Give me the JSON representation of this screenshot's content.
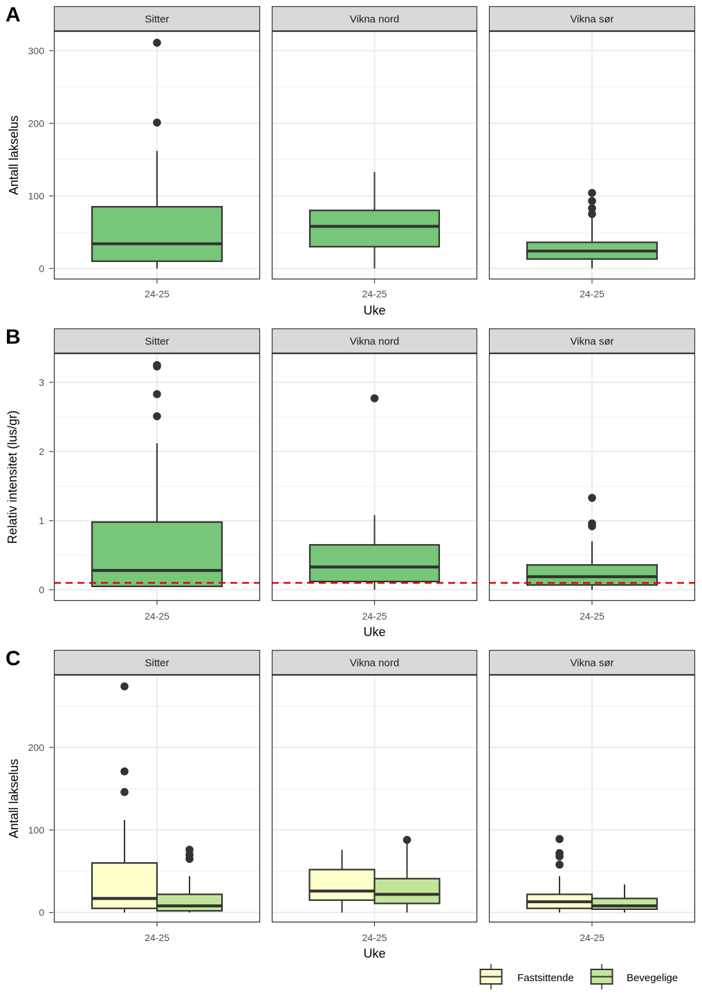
{
  "colors": {
    "single_fill": "#78c679",
    "fastsittende_fill": "#ffffcc",
    "bevegelige_fill": "#c2e699",
    "outline": "#333333",
    "strip_bg": "#d9d9d9",
    "threshold": "#e60000"
  },
  "legend": {
    "items": [
      {
        "label": "Fastsittende",
        "color": "#ffffcc"
      },
      {
        "label": "Bevegelige",
        "color": "#c2e699"
      }
    ]
  },
  "chart_data": [
    {
      "type": "boxplot",
      "panel_label": "A",
      "ylabel": "Antall lakselus",
      "xlabel": "Uke",
      "ylim": [
        -15,
        327
      ],
      "yticks": [
        0,
        100,
        200,
        300
      ],
      "facets": [
        {
          "title": "Sitter",
          "category": "24-25",
          "boxes": [
            {
              "series": "all",
              "whisker_low": 0,
              "q1": 10,
              "median": 34,
              "q3": 85,
              "whisker_high": 162,
              "outliers": [
                201,
                311
              ]
            }
          ]
        },
        {
          "title": "Vikna nord",
          "category": "24-25",
          "boxes": [
            {
              "series": "all",
              "whisker_low": 0,
              "q1": 30,
              "median": 58,
              "q3": 80,
              "whisker_high": 133,
              "outliers": []
            }
          ]
        },
        {
          "title": "Vikna sør",
          "category": "24-25",
          "boxes": [
            {
              "series": "all",
              "whisker_low": 0,
              "q1": 13,
              "median": 24,
              "q3": 36,
              "whisker_high": 70,
              "outliers": [
                75,
                83,
                93,
                104
              ]
            }
          ]
        }
      ]
    },
    {
      "type": "boxplot",
      "panel_label": "B",
      "ylabel": "Relativ intensitet (lus/gr)",
      "xlabel": "Uke",
      "ylim": [
        -0.16,
        3.42
      ],
      "yticks": [
        0,
        1,
        2,
        3
      ],
      "threshold": 0.1,
      "facets": [
        {
          "title": "Sitter",
          "category": "24-25",
          "boxes": [
            {
              "series": "all",
              "whisker_low": 0.04,
              "q1": 0.05,
              "median": 0.28,
              "q3": 0.98,
              "whisker_high": 2.12,
              "outliers": [
                2.51,
                2.83,
                3.23,
                3.25
              ]
            }
          ]
        },
        {
          "title": "Vikna nord",
          "category": "24-25",
          "boxes": [
            {
              "series": "all",
              "whisker_low": 0,
              "q1": 0.12,
              "median": 0.33,
              "q3": 0.65,
              "whisker_high": 1.08,
              "outliers": [
                2.77
              ]
            }
          ]
        },
        {
          "title": "Vikna sør",
          "category": "24-25",
          "boxes": [
            {
              "series": "all",
              "whisker_low": 0,
              "q1": 0.07,
              "median": 0.19,
              "q3": 0.36,
              "whisker_high": 0.7,
              "outliers": [
                0.92,
                0.96,
                1.33
              ]
            }
          ]
        }
      ]
    },
    {
      "type": "boxplot",
      "panel_label": "C",
      "ylabel": "Antall lakselus",
      "xlabel": "Uke",
      "ylim": [
        -12,
        288
      ],
      "yticks": [
        0,
        100,
        200
      ],
      "facets": [
        {
          "title": "Sitter",
          "category": "24-25",
          "boxes": [
            {
              "series": "Fastsittende",
              "whisker_low": 0,
              "q1": 5,
              "median": 17,
              "q3": 60,
              "whisker_high": 112,
              "outliers": [
                146,
                171,
                274
              ]
            },
            {
              "series": "Bevegelige",
              "whisker_low": 0,
              "q1": 2,
              "median": 8,
              "q3": 22,
              "whisker_high": 44,
              "outliers": [
                65,
                70,
                76
              ]
            }
          ]
        },
        {
          "title": "Vikna nord",
          "category": "24-25",
          "boxes": [
            {
              "series": "Fastsittende",
              "whisker_low": 0,
              "q1": 15,
              "median": 26,
              "q3": 52,
              "whisker_high": 76,
              "outliers": []
            },
            {
              "series": "Bevegelige",
              "whisker_low": 0,
              "q1": 11,
              "median": 22,
              "q3": 41,
              "whisker_high": 88,
              "outliers": [
                88
              ]
            }
          ]
        },
        {
          "title": "Vikna sør",
          "category": "24-25",
          "boxes": [
            {
              "series": "Fastsittende",
              "whisker_low": 0,
              "q1": 5,
              "median": 13,
              "q3": 22,
              "whisker_high": 44,
              "outliers": [
                58,
                68,
                72,
                89
              ]
            },
            {
              "series": "Bevegelige",
              "whisker_low": 0,
              "q1": 4,
              "median": 8,
              "q3": 17,
              "whisker_high": 34,
              "outliers": []
            }
          ]
        }
      ]
    }
  ]
}
